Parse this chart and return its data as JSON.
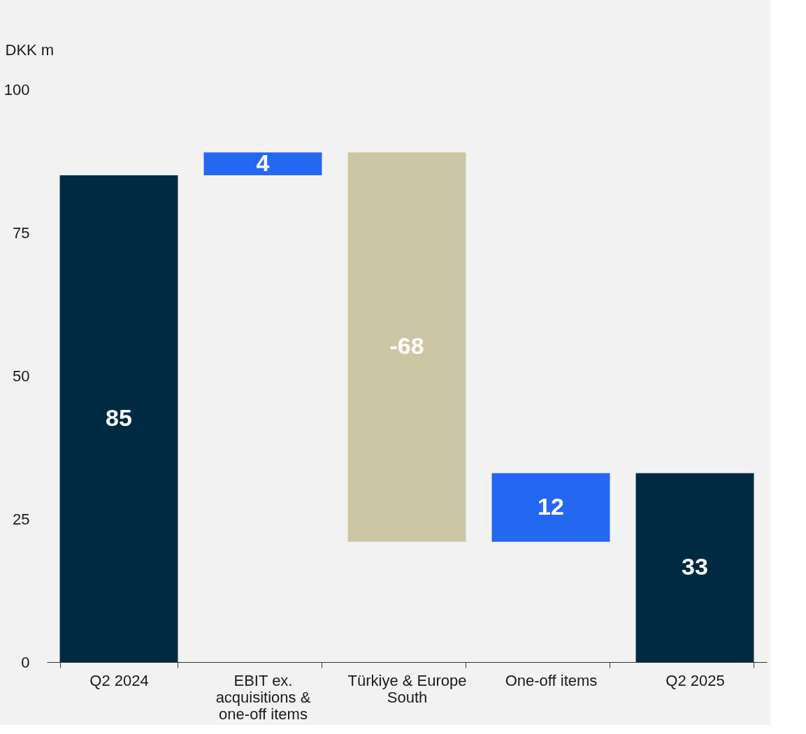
{
  "chart_data": {
    "type": "bar",
    "ylabel": "DKK m",
    "categories": [
      "Q2 2024",
      "EBIT ex. acquisitions & one-off items",
      "Türkiye & Europe South",
      "One-off items",
      "Q2 2025"
    ],
    "values": [
      85,
      4,
      -68,
      12,
      33
    ],
    "base": [
      0,
      85,
      89,
      21,
      0
    ],
    "colors": [
      "#002a42",
      "#2468f2",
      "#cdc6a5",
      "#2468f2",
      "#002a42"
    ],
    "ylim": [
      0,
      100
    ],
    "yticks": [
      0,
      25,
      50,
      75,
      100
    ],
    "data_labels": true
  }
}
